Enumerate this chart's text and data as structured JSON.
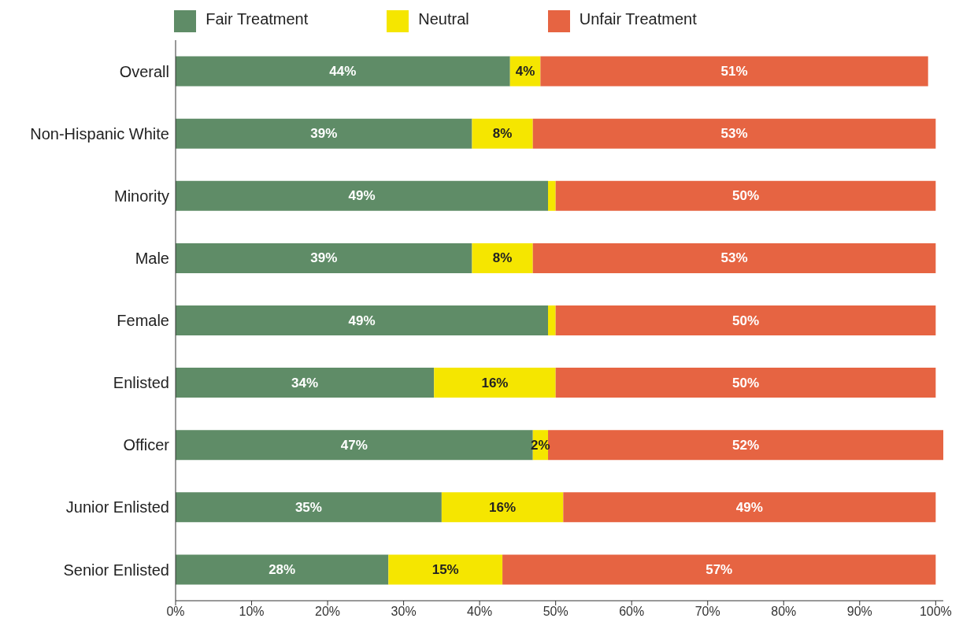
{
  "chart_data": {
    "type": "bar",
    "orientation": "horizontal",
    "stacked": true,
    "categories": [
      "Overall",
      "Non-Hispanic White",
      "Minority",
      "Male",
      "Female",
      "Enlisted",
      "Officer",
      "Junior Enlisted",
      "Senior Enlisted"
    ],
    "series": [
      {
        "name": "Fair Treatment",
        "color": "#5f8c67",
        "values": [
          44,
          39,
          49,
          39,
          49,
          34,
          47,
          35,
          28
        ],
        "value_labels": [
          "44%",
          "39%",
          "49%",
          "39%",
          "49%",
          "34%",
          "47%",
          "35%",
          "28%"
        ]
      },
      {
        "name": "Neutral",
        "color": "#f5e600",
        "values": [
          4,
          8,
          1,
          8,
          1,
          16,
          2,
          16,
          15
        ],
        "value_labels": [
          "4%",
          "8%",
          null,
          "8%",
          null,
          "16%",
          "2%",
          "16%",
          "15%"
        ]
      },
      {
        "name": "Unfair Treatment",
        "color": "#e66442",
        "values": [
          51,
          53,
          50,
          53,
          50,
          50,
          52,
          49,
          57
        ],
        "value_labels": [
          "51%",
          "53%",
          "50%",
          "53%",
          "50%",
          "50%",
          "52%",
          "49%",
          "57%"
        ]
      }
    ],
    "xlim": [
      0,
      101
    ],
    "xticks": [
      {
        "value": 0,
        "label": "0%"
      },
      {
        "value": 10,
        "label": "10%"
      },
      {
        "value": 20,
        "label": "20%"
      },
      {
        "value": 30,
        "label": "30%"
      },
      {
        "value": 40,
        "label": "40%"
      },
      {
        "value": 50,
        "label": "50%"
      },
      {
        "value": 60,
        "label": "60%"
      },
      {
        "value": 70,
        "label": "70%"
      },
      {
        "value": 80,
        "label": "80%"
      },
      {
        "value": 90,
        "label": "90%"
      },
      {
        "value": 100,
        "label": "100%"
      }
    ],
    "legend": "top"
  }
}
